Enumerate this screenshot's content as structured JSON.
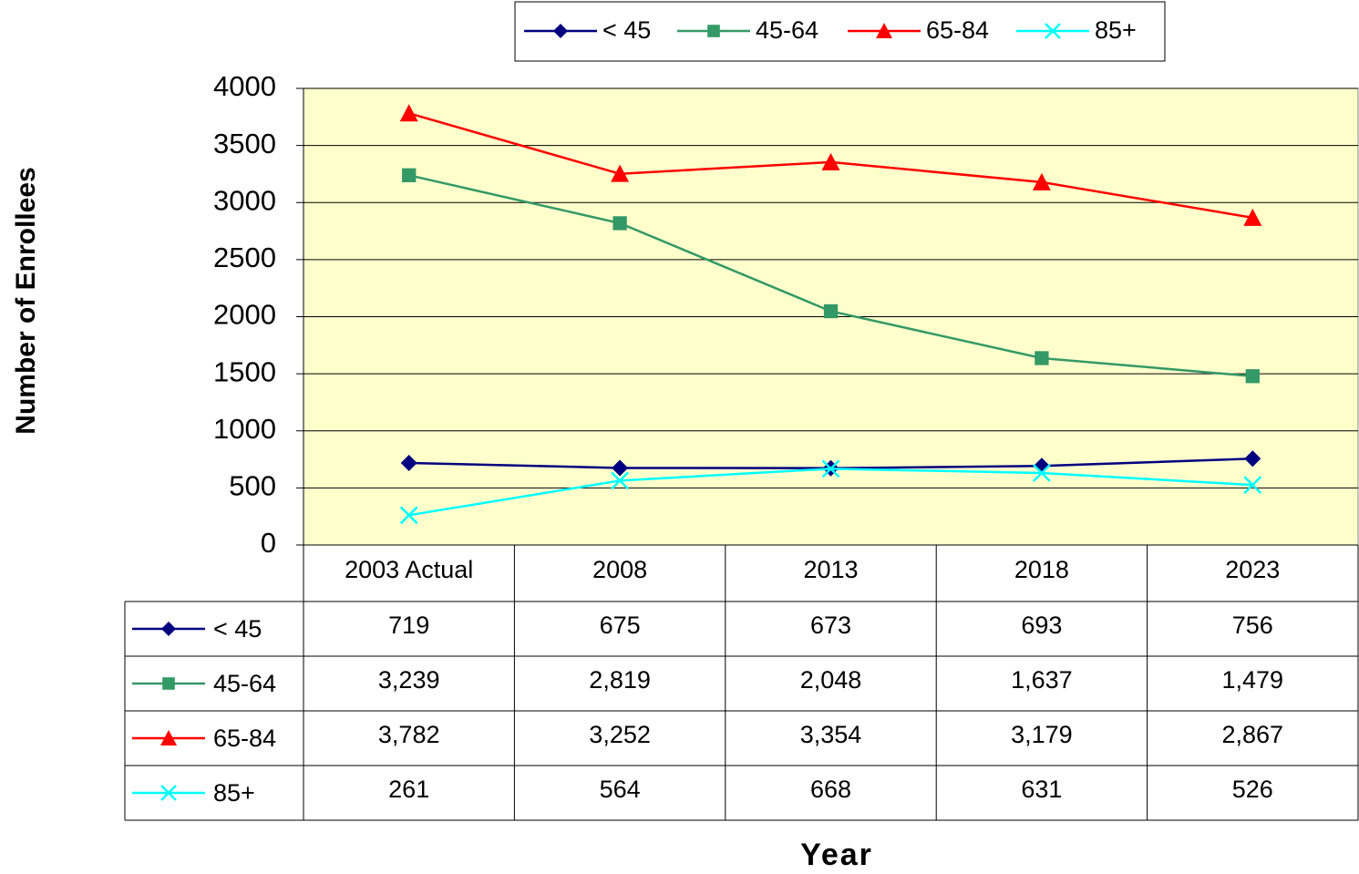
{
  "chart_data": {
    "type": "line",
    "categories": [
      "2003 Actual",
      "2008",
      "2013",
      "2018",
      "2023"
    ],
    "series": [
      {
        "name": "< 45",
        "color": "#000080",
        "marker": "diamond",
        "values": [
          719,
          675,
          673,
          693,
          756
        ],
        "value_labels": [
          "719",
          "675",
          "673",
          "693",
          "756"
        ]
      },
      {
        "name": "45-64",
        "color": "#339966",
        "marker": "square",
        "values": [
          3239,
          2819,
          2048,
          1637,
          1479
        ],
        "value_labels": [
          "3,239",
          "2,819",
          "2,048",
          "1,637",
          "1,479"
        ]
      },
      {
        "name": "65-84",
        "color": "#ff0000",
        "marker": "triangle",
        "values": [
          3782,
          3252,
          3354,
          3179,
          2867
        ],
        "value_labels": [
          "3,782",
          "3,252",
          "3,354",
          "3,179",
          "2,867"
        ]
      },
      {
        "name": "85+",
        "color": "#00ffff",
        "marker": "x",
        "values": [
          261,
          564,
          668,
          631,
          526
        ],
        "value_labels": [
          "261",
          "564",
          "668",
          "631",
          "526"
        ]
      }
    ],
    "ylim": [
      0,
      4000
    ],
    "yticks": [
      0,
      500,
      1000,
      1500,
      2000,
      2500,
      3000,
      3500,
      4000
    ],
    "grid": true,
    "ylabel": "Number of Enrollees",
    "xlabel": "Year",
    "legend": "top"
  }
}
